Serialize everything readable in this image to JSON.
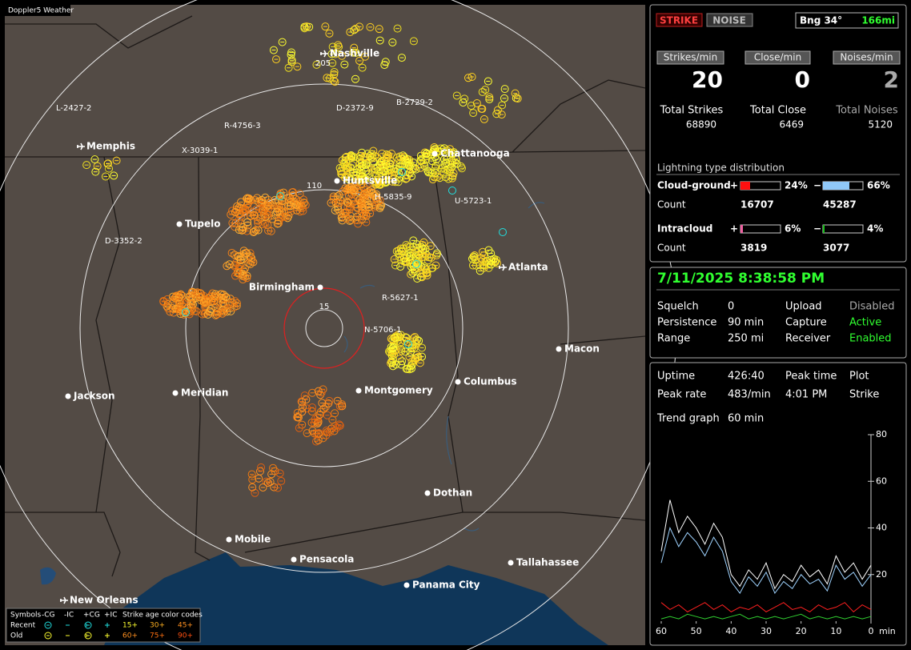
{
  "map": {
    "title": "Doppler5 Weather",
    "cities": [
      "Nashville",
      "Memphis",
      "Chattanooga",
      "Huntsville",
      "Tupelo",
      "Birmingham",
      "Atlanta",
      "Macon",
      "Jackson",
      "Meridian",
      "Montgomery",
      "Columbus",
      "Dothan",
      "Mobile",
      "Pensacola",
      "Tallahassee",
      "Panama City",
      "New Orleans"
    ],
    "labels": [
      "205",
      "L-2427-2",
      "D-2372-9",
      "B-2729-2",
      "R-4756-3",
      "X-3039-1",
      "110",
      "H-5835-9",
      "U-5723-1",
      "D-3352-2",
      "R-5627-1",
      "N-5706-1"
    ],
    "range_label": "15",
    "legend": {
      "symbols": "Symbols",
      "columns": [
        "-CG",
        "-IC",
        "+CG",
        "+IC"
      ],
      "age_title": "Strike age color codes",
      "rows": [
        "Recent",
        "Old"
      ],
      "ages": [
        [
          "15+",
          "30+",
          "45+"
        ],
        [
          "60+",
          "75+",
          "90+"
        ]
      ]
    }
  },
  "status": {
    "buttons": [
      "STRIKE",
      "NOISE"
    ],
    "bearing": "Bng 34°",
    "distance": "166mi",
    "rates": [
      {
        "label": "Strikes/min",
        "value": 20,
        "total_label": "Total Strikes",
        "total": 68890
      },
      {
        "label": "Close/min",
        "value": 0,
        "total_label": "Total Close",
        "total": 6469
      },
      {
        "label": "Noises/min",
        "value": 2,
        "total_label": "Total Noises",
        "total": 5120
      }
    ],
    "distribution": {
      "title": "Lightning type distribution",
      "count_label": "Count",
      "signs": [
        "+",
        "−"
      ],
      "types": [
        {
          "name": "Cloud-ground",
          "pos": {
            "value": 24,
            "label": "24%"
          },
          "neg": {
            "value": 66,
            "label": "66%"
          },
          "counts": [
            16707,
            45287
          ]
        },
        {
          "name": "Intracloud",
          "pos": {
            "value": 6,
            "label": "6%"
          },
          "neg": {
            "value": 4,
            "label": "4%"
          },
          "counts": [
            3819,
            3077
          ]
        }
      ]
    }
  },
  "settings": {
    "datetime": "7/11/2025 8:38:58 PM",
    "rows": [
      [
        "Squelch",
        "0",
        "Upload",
        "Disabled"
      ],
      [
        "Persistence",
        "90 min",
        "Capture",
        "Active"
      ],
      [
        "Range",
        "250 mi",
        "Receiver",
        "Enabled"
      ]
    ]
  },
  "stats": {
    "rows": [
      [
        "Uptime",
        "426:40",
        "Peak time",
        "Plot"
      ],
      [
        "Peak rate",
        "483/min",
        "4:01 PM",
        "Strike"
      ]
    ],
    "trend_label": "Trend graph",
    "trend_window": "60 min",
    "chart_data": {
      "type": "line",
      "x": [
        60,
        57.5,
        55,
        52.5,
        50,
        47.5,
        45,
        42.5,
        40,
        37.5,
        35,
        32.5,
        30,
        27.5,
        25,
        22.5,
        20,
        17.5,
        15,
        12.5,
        10,
        7.5,
        5,
        2.5,
        0
      ],
      "xlim": [
        60,
        0
      ],
      "xticks": [
        60,
        50,
        40,
        30,
        20,
        10,
        0
      ],
      "xunit": "min",
      "ylim": [
        0,
        80
      ],
      "yticks": [
        20,
        40,
        60,
        80
      ],
      "series": [
        {
          "color": "#ffffff",
          "values": [
            30,
            52,
            38,
            45,
            40,
            33,
            42,
            36,
            20,
            15,
            22,
            18,
            25,
            14,
            20,
            17,
            24,
            19,
            22,
            16,
            28,
            21,
            25,
            18,
            24
          ]
        },
        {
          "color": "#9fd3ff",
          "values": [
            25,
            40,
            32,
            38,
            34,
            28,
            36,
            30,
            17,
            12,
            19,
            15,
            21,
            12,
            17,
            14,
            20,
            16,
            18,
            13,
            24,
            18,
            21,
            15,
            20
          ]
        },
        {
          "color": "#ff2020",
          "values": [
            8,
            5,
            7,
            4,
            6,
            8,
            5,
            7,
            4,
            6,
            5,
            7,
            4,
            6,
            8,
            5,
            6,
            4,
            7,
            5,
            6,
            8,
            4,
            7,
            5
          ]
        },
        {
          "color": "#30d030",
          "values": [
            1,
            2,
            1,
            3,
            2,
            1,
            2,
            1,
            2,
            3,
            1,
            2,
            1,
            2,
            1,
            2,
            3,
            1,
            2,
            1,
            2,
            1,
            2,
            1,
            2
          ]
        }
      ]
    }
  }
}
